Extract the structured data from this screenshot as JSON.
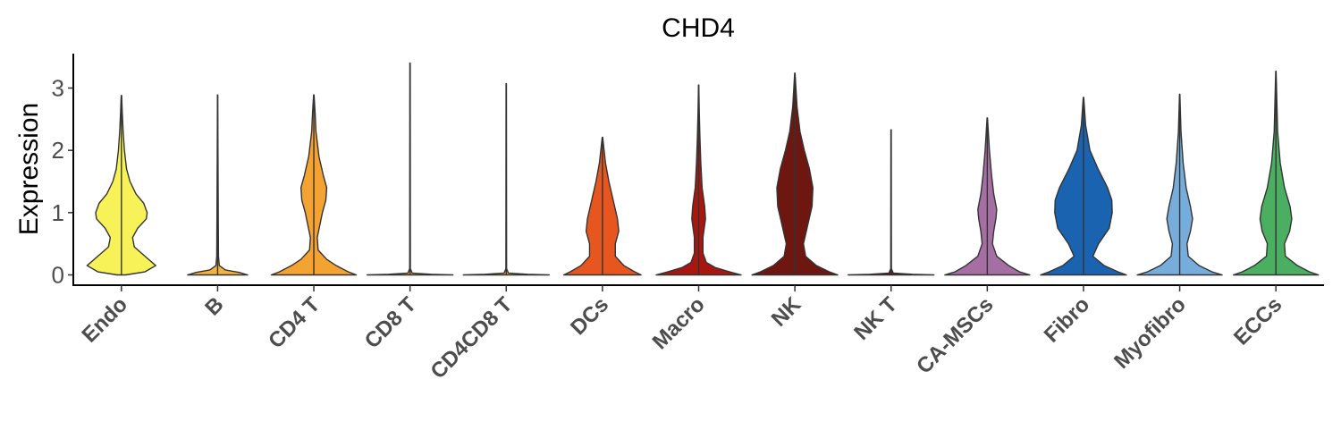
{
  "chart_data": {
    "type": "violin",
    "title": "CHD4",
    "xlabel": "",
    "ylabel": "Expression",
    "ylim": [
      -0.15,
      3.55
    ],
    "yticks": [
      0,
      1,
      2,
      3
    ],
    "grid": false,
    "legend": "none",
    "categories": [
      "Endo",
      "B",
      "CD4 T",
      "CD8 T",
      "CD4CD8 T",
      "DCs",
      "Macro",
      "NK",
      "NK T",
      "CA-MSCs",
      "Fibro",
      "Myofibro",
      "ECCs"
    ],
    "colors": [
      "#F7F257",
      "#F4B23E",
      "#F4A332",
      "#F2A032",
      "#F2A032",
      "#E8561F",
      "#A8170F",
      "#6E1711",
      "#6E1711",
      "#A56FA3",
      "#1A63B0",
      "#77ADDB",
      "#4BAF62"
    ],
    "max": [
      2.88,
      2.89,
      2.89,
      3.4,
      3.07,
      2.21,
      3.05,
      3.24,
      2.33,
      2.52,
      2.85,
      2.9,
      3.27
    ],
    "density": [
      [
        [
          0,
          0.1
        ],
        [
          0.05,
          0.55
        ],
        [
          0.15,
          0.8
        ],
        [
          0.3,
          0.55
        ],
        [
          0.45,
          0.3
        ],
        [
          0.6,
          0.26
        ],
        [
          0.75,
          0.38
        ],
        [
          0.9,
          0.58
        ],
        [
          1.0,
          0.6
        ],
        [
          1.15,
          0.52
        ],
        [
          1.3,
          0.34
        ],
        [
          1.5,
          0.2
        ],
        [
          1.7,
          0.12
        ],
        [
          2.0,
          0.07
        ],
        [
          2.3,
          0.04
        ],
        [
          2.6,
          0.02
        ],
        [
          2.88,
          0.005
        ]
      ],
      [
        [
          0,
          0.7
        ],
        [
          0.04,
          0.5
        ],
        [
          0.08,
          0.18
        ],
        [
          0.15,
          0.04
        ],
        [
          0.3,
          0.02
        ],
        [
          1.0,
          0.015
        ],
        [
          2.0,
          0.008
        ],
        [
          2.89,
          0.003
        ]
      ],
      [
        [
          0,
          0.99
        ],
        [
          0.05,
          0.8
        ],
        [
          0.15,
          0.52
        ],
        [
          0.25,
          0.3
        ],
        [
          0.4,
          0.1
        ],
        [
          0.6,
          0.08
        ],
        [
          0.8,
          0.14
        ],
        [
          1.0,
          0.2
        ],
        [
          1.2,
          0.28
        ],
        [
          1.4,
          0.3
        ],
        [
          1.6,
          0.22
        ],
        [
          1.9,
          0.12
        ],
        [
          2.3,
          0.05
        ],
        [
          2.6,
          0.03
        ],
        [
          2.89,
          0.005
        ]
      ],
      [
        [
          0,
          1.0
        ],
        [
          0.01,
          0.5
        ],
        [
          0.03,
          0.05
        ],
        [
          0.1,
          0.008
        ],
        [
          3.4,
          0.004
        ]
      ],
      [
        [
          0,
          1.0
        ],
        [
          0.01,
          0.5
        ],
        [
          0.03,
          0.05
        ],
        [
          0.1,
          0.008
        ],
        [
          3.07,
          0.004
        ]
      ],
      [
        [
          0,
          0.9
        ],
        [
          0.05,
          0.75
        ],
        [
          0.15,
          0.5
        ],
        [
          0.3,
          0.3
        ],
        [
          0.5,
          0.3
        ],
        [
          0.7,
          0.38
        ],
        [
          0.9,
          0.35
        ],
        [
          1.2,
          0.25
        ],
        [
          1.5,
          0.15
        ],
        [
          1.8,
          0.07
        ],
        [
          2.21,
          0.005
        ]
      ],
      [
        [
          0,
          0.99
        ],
        [
          0.05,
          0.72
        ],
        [
          0.12,
          0.38
        ],
        [
          0.2,
          0.18
        ],
        [
          0.35,
          0.1
        ],
        [
          0.6,
          0.1
        ],
        [
          0.9,
          0.16
        ],
        [
          1.1,
          0.14
        ],
        [
          1.4,
          0.08
        ],
        [
          1.8,
          0.05
        ],
        [
          2.2,
          0.03
        ],
        [
          2.6,
          0.015
        ],
        [
          3.05,
          0.003
        ]
      ],
      [
        [
          0,
          1.0
        ],
        [
          0.05,
          0.8
        ],
        [
          0.15,
          0.5
        ],
        [
          0.3,
          0.25
        ],
        [
          0.5,
          0.2
        ],
        [
          0.8,
          0.3
        ],
        [
          1.1,
          0.4
        ],
        [
          1.4,
          0.42
        ],
        [
          1.7,
          0.34
        ],
        [
          2.0,
          0.22
        ],
        [
          2.3,
          0.12
        ],
        [
          2.7,
          0.05
        ],
        [
          3.24,
          0.004
        ]
      ],
      [
        [
          0,
          1.0
        ],
        [
          0.01,
          0.5
        ],
        [
          0.03,
          0.05
        ],
        [
          0.1,
          0.008
        ],
        [
          2.33,
          0.004
        ]
      ],
      [
        [
          0,
          0.99
        ],
        [
          0.05,
          0.75
        ],
        [
          0.15,
          0.5
        ],
        [
          0.3,
          0.22
        ],
        [
          0.5,
          0.12
        ],
        [
          0.7,
          0.15
        ],
        [
          0.9,
          0.2
        ],
        [
          1.05,
          0.22
        ],
        [
          1.3,
          0.15
        ],
        [
          1.6,
          0.1
        ],
        [
          2.0,
          0.05
        ],
        [
          2.52,
          0.005
        ]
      ],
      [
        [
          0,
          1.0
        ],
        [
          0.05,
          0.8
        ],
        [
          0.15,
          0.48
        ],
        [
          0.3,
          0.22
        ],
        [
          0.5,
          0.35
        ],
        [
          0.75,
          0.6
        ],
        [
          1.0,
          0.67
        ],
        [
          1.2,
          0.66
        ],
        [
          1.4,
          0.56
        ],
        [
          1.7,
          0.34
        ],
        [
          2.0,
          0.15
        ],
        [
          2.4,
          0.05
        ],
        [
          2.85,
          0.005
        ]
      ],
      [
        [
          0,
          0.99
        ],
        [
          0.05,
          0.75
        ],
        [
          0.15,
          0.45
        ],
        [
          0.3,
          0.2
        ],
        [
          0.5,
          0.17
        ],
        [
          0.7,
          0.25
        ],
        [
          0.9,
          0.3
        ],
        [
          1.1,
          0.25
        ],
        [
          1.4,
          0.15
        ],
        [
          1.8,
          0.08
        ],
        [
          2.3,
          0.03
        ],
        [
          2.9,
          0.004
        ]
      ],
      [
        [
          0,
          0.99
        ],
        [
          0.05,
          0.78
        ],
        [
          0.15,
          0.5
        ],
        [
          0.3,
          0.22
        ],
        [
          0.5,
          0.2
        ],
        [
          0.7,
          0.32
        ],
        [
          0.9,
          0.37
        ],
        [
          1.1,
          0.33
        ],
        [
          1.4,
          0.2
        ],
        [
          1.8,
          0.1
        ],
        [
          2.3,
          0.04
        ],
        [
          3.27,
          0.004
        ]
      ]
    ]
  }
}
